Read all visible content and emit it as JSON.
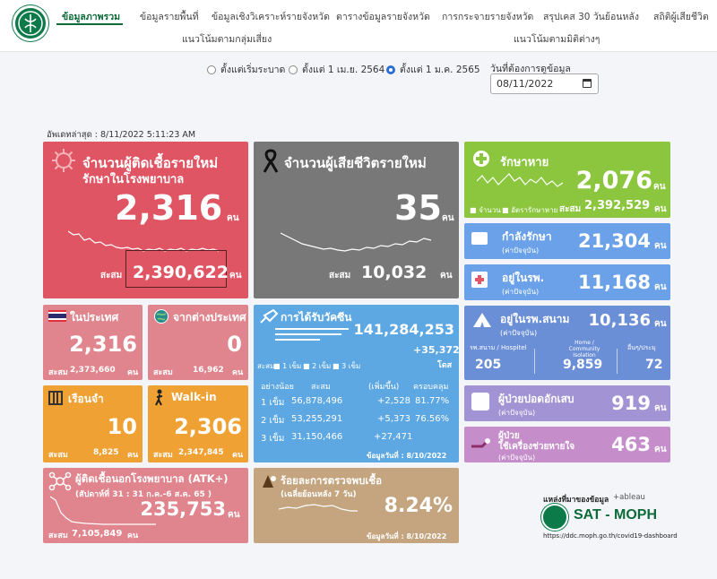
{
  "nav": {
    "items": [
      "ข้อมูลภาพรวม",
      "ข้อมูลรายพื้นที่",
      "ข้อมูลเชิงวิเคราะห์รายจังหวัด",
      "ตารางข้อมูลรายจังหวัด",
      "การกระจายรายจังหวัด",
      "สรุปเคส 30 วันย้อนหลัง",
      "สถิติผู้เสียชีวิต"
    ],
    "row2": [
      "แนวโน้มตามกลุ่มเสี่ยง",
      "แนวโน้มตามมิติต่างๆ"
    ]
  },
  "filters": {
    "options": [
      "ตั้งแต่เริ่มระบาด",
      "ตั้งแต่ 1 เม.ย. 2564",
      "ตั้งแต่ 1 ม.ค. 2565"
    ],
    "date_label": "วันที่ต้องการดูข้อมูล",
    "date_value": "08/11/2022"
  },
  "updated": "อัพเดทล่าสุด : 8/11/2022 5:11:23 AM",
  "new_cases": {
    "title": "จำนวนผู้ติดเชื้อรายใหม่",
    "subtitle": "รักษาในโรงพยาบาล",
    "value": "2,316",
    "unit": "คน",
    "total_label": "สะสม",
    "total": "2,390,622",
    "total_unit": "คน"
  },
  "deaths": {
    "title": "จำนวนผู้เสียชีวิตรายใหม่",
    "value": "35",
    "unit": "คน",
    "total_label": "สะสม",
    "total": "10,032",
    "total_unit": "คน"
  },
  "recovered": {
    "title": "รักษาหาย",
    "value": "2,076",
    "unit": "คน",
    "legend1": "จำนวน",
    "legend2": "อัตรารักษาหาย",
    "total_label": "สะสม",
    "total": "2,392,529",
    "total_unit": "คน"
  },
  "treating": {
    "label": "กำลังรักษา",
    "note": "(ค่าปัจจุบัน)",
    "value": "21,304",
    "unit": "คน"
  },
  "in_hospital": {
    "label": "อยู่ในรพ.",
    "note": "(ค่าปัจจุบัน)",
    "value": "11,168",
    "unit": "คน"
  },
  "field_hospital": {
    "label": "อยู่ในรพ.สนาม",
    "note": "(ค่าปัจจุบัน)",
    "value": "10,136",
    "unit": "คน",
    "cols": [
      {
        "label": "รพ.สนาม / Hospitel",
        "value": "205"
      },
      {
        "label": "Home / Community Isolation",
        "value": "9,859"
      },
      {
        "label": "อื่นๆ/ประมุ",
        "value": "72"
      }
    ]
  },
  "pneumonia": {
    "label": "ผู้ป่วยปอดอักเสบ",
    "note": "(ค่าปัจจุบัน)",
    "value": "919",
    "unit": "คน"
  },
  "ventilator": {
    "label1": "ผู้ป่วย",
    "label2": "ใช้เครื่องช่วยหายใจ",
    "note": "(ค่าปัจจุบัน)",
    "value": "463",
    "unit": "คน"
  },
  "domestic": {
    "label": "ในประเทศ",
    "value": "2,316",
    "total_label": "สะสม",
    "total": "2,373,660",
    "unit": "คน"
  },
  "abroad": {
    "label": "จากต่างประเทศ",
    "value": "0",
    "total_label": "สะสม",
    "total": "16,962",
    "unit": "คน"
  },
  "prison": {
    "label": "เรือนจำ",
    "value": "10",
    "total_label": "สะสม",
    "total": "8,825",
    "unit": "คน"
  },
  "walkin": {
    "label": "Walk-in",
    "value": "2,306",
    "total_label": "สะสม",
    "total": "2,347,845",
    "unit": "คน"
  },
  "vaccine": {
    "title": "การได้รับวัคซีน",
    "value": "141,284,253",
    "delta": "+35,372",
    "unit": "โดส",
    "legend_label": "สะสม",
    "legend": [
      "1 เข็ม",
      "2 เข็ม",
      "3 เข็ม"
    ],
    "headers": [
      "อย่างน้อย",
      "สะสม",
      "(เพิ่มขึ้น)",
      "ครอบคลุม"
    ],
    "rows": [
      {
        "dose": "1 เข็ม",
        "total": "56,878,496",
        "delta": "+2,528",
        "coverage": "81.77%"
      },
      {
        "dose": "2 เข็ม",
        "total": "53,255,291",
        "delta": "+5,373",
        "coverage": "76.56%"
      },
      {
        "dose": "3 เข็ม",
        "total": "31,150,466",
        "delta": "+27,471",
        "coverage": ""
      }
    ],
    "as_of": "ข้อมูลวันที่ : 8/10/2022"
  },
  "atk": {
    "title": "ผู้ติดเชื้อนอกโรงพยาบาล (ATK+)",
    "week": "(สัปดาห์ที่ 31 : 31 ก.ค.-6 ส.ค. 65 )",
    "value": "235,753",
    "unit": "คน",
    "total_label": "สะสม",
    "total": "7,105,849",
    "total_unit": "คน"
  },
  "positivity": {
    "title": "ร้อยละการตรวจพบเชื้อ",
    "sub": "(เฉลี่ยย้อนหลัง 7 วัน)",
    "value": "8.24%",
    "as_of": "ข้อมูลวันที่ : 8/10/2022"
  },
  "source": {
    "label": "แหล่งที่มาของข้อมูล",
    "tableau": "+ableau",
    "brand": "SAT - MOPH",
    "url": "https://ddc.moph.go.th/covid19-dashboard"
  },
  "colors": {
    "red": "#e05563",
    "gray": "#787878",
    "green": "#8cc63e",
    "blue": "#6aa1e8",
    "pink": "#e0858e",
    "orange": "#f0a133",
    "cyan": "#5da7e2",
    "tan": "#c4a57f",
    "purple": "#a193d4",
    "violet": "#c58ecb",
    "navy": "#6b8fd6",
    "brand": "#0d7a4a"
  }
}
